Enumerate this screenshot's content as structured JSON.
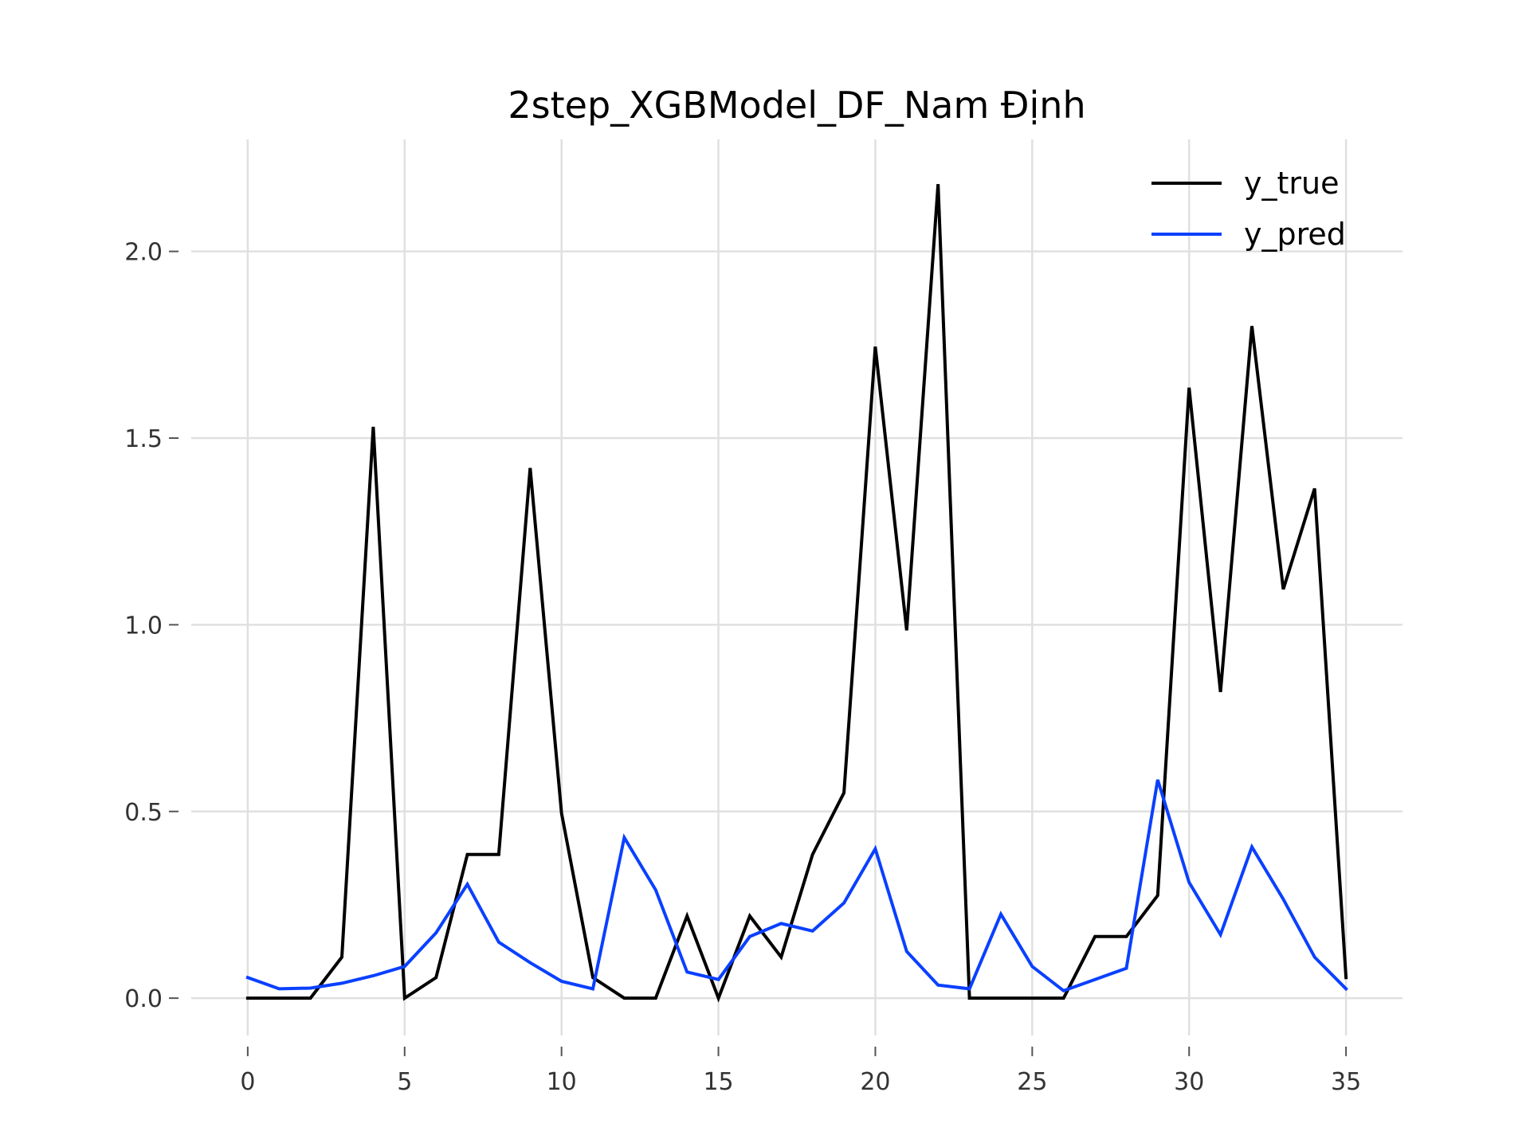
{
  "chart_data": {
    "type": "line",
    "title": "2step_XGBModel_DF_Nam Định",
    "xlabel": "",
    "ylabel": "",
    "x": [
      0,
      1,
      2,
      3,
      4,
      5,
      6,
      7,
      8,
      9,
      10,
      11,
      12,
      13,
      14,
      15,
      16,
      17,
      18,
      19,
      20,
      21,
      22,
      23,
      24,
      25,
      26,
      27,
      28,
      29,
      30,
      31,
      32,
      33,
      34,
      35
    ],
    "xlim": [
      -1.8,
      36.8
    ],
    "ylim": [
      -0.1,
      2.3
    ],
    "xticks": [
      0,
      5,
      10,
      15,
      20,
      25,
      30,
      35
    ],
    "xtick_labels": [
      "0",
      "5",
      "10",
      "15",
      "20",
      "25",
      "30",
      "35"
    ],
    "yticks": [
      0.0,
      0.5,
      1.0,
      1.5,
      2.0
    ],
    "ytick_labels": [
      "0.0",
      "0.5",
      "1.0",
      "1.5",
      "2.0"
    ],
    "grid": true,
    "legend_position": "top-right",
    "series": [
      {
        "name": "y_true",
        "color": "#000000",
        "values": [
          0.0,
          0.0,
          0.0,
          0.11,
          1.53,
          0.0,
          0.055,
          0.385,
          0.385,
          1.42,
          0.495,
          0.055,
          0.0,
          0.0,
          0.22,
          0.0,
          0.22,
          0.11,
          0.385,
          0.55,
          1.745,
          0.985,
          2.18,
          0.0,
          0.0,
          0.0,
          0.0,
          0.165,
          0.165,
          0.275,
          1.635,
          0.82,
          1.8,
          1.095,
          1.365,
          0.055
        ]
      },
      {
        "name": "y_pred",
        "color": "#0a40ff",
        "values": [
          0.055,
          0.025,
          0.027,
          0.04,
          0.06,
          0.085,
          0.175,
          0.305,
          0.15,
          0.095,
          0.045,
          0.025,
          0.43,
          0.29,
          0.07,
          0.05,
          0.165,
          0.2,
          0.18,
          0.255,
          0.4,
          0.125,
          0.035,
          0.025,
          0.225,
          0.085,
          0.02,
          0.05,
          0.08,
          0.585,
          0.31,
          0.17,
          0.405,
          0.265,
          0.11,
          0.025
        ]
      }
    ]
  }
}
